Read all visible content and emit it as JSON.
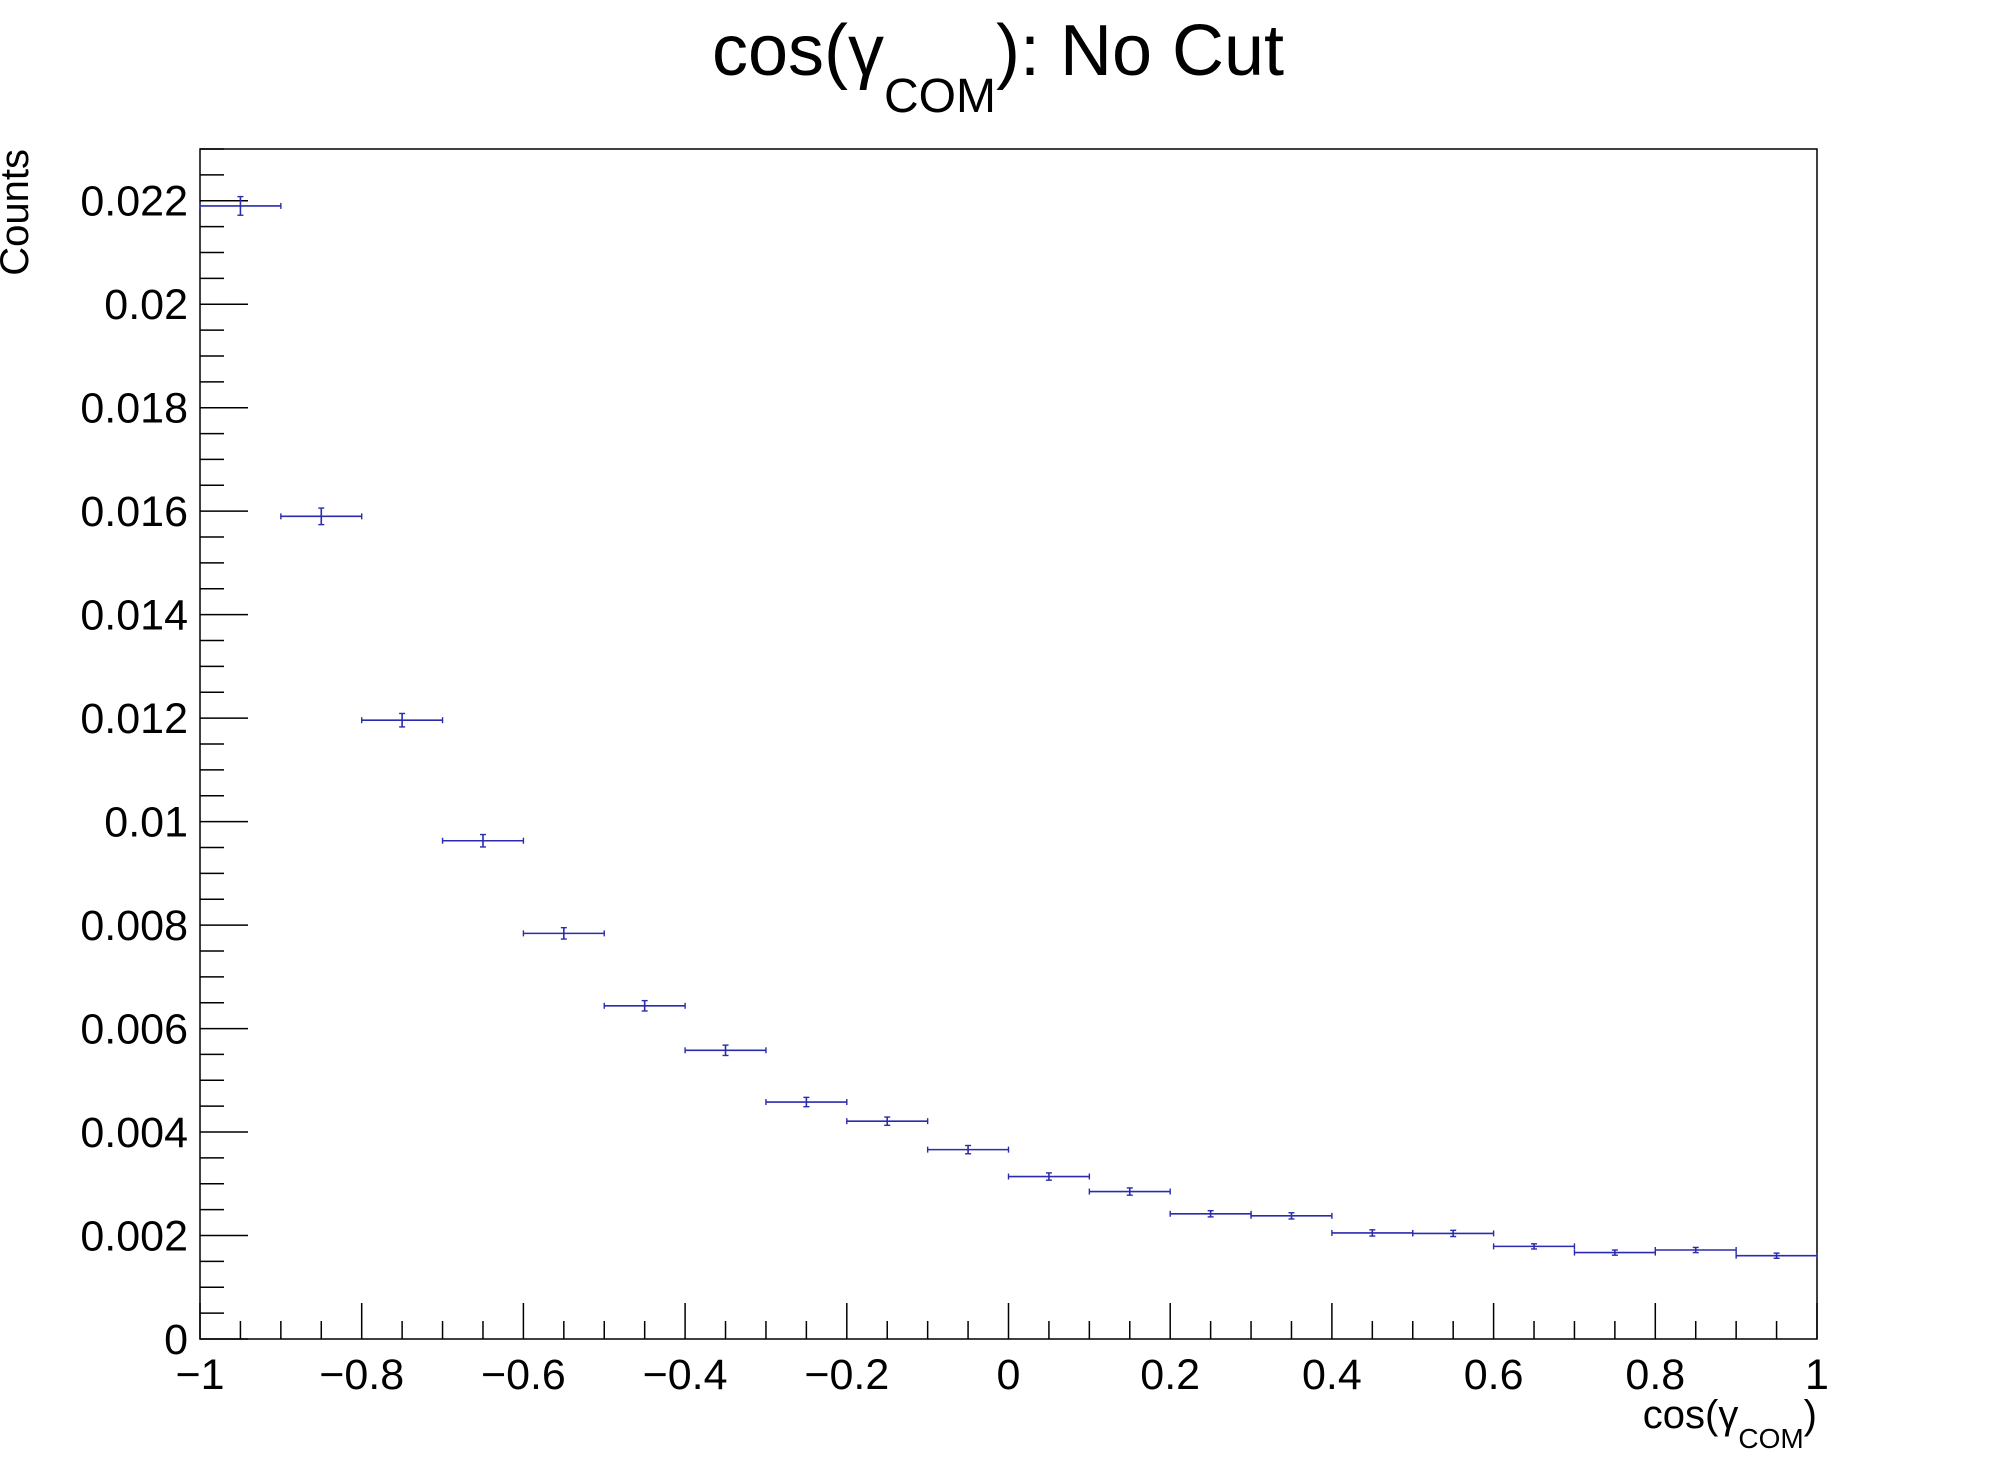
{
  "chart_data": {
    "type": "scatter",
    "title": "cos(γCOM): No Cut",
    "title_parts": {
      "main": "cos(γ",
      "sub": "COM",
      "tail": "): No Cut"
    },
    "xlabel": "cos(γCOM)",
    "xlabel_parts": {
      "main": "cos(γ",
      "sub": "COM",
      "tail": ")"
    },
    "ylabel": "Counts",
    "xlim": [
      -1,
      1
    ],
    "ylim": [
      0,
      0.023
    ],
    "x_ticks": [
      -1,
      -0.8,
      -0.6,
      -0.4,
      -0.2,
      0,
      0.2,
      0.4,
      0.6,
      0.8,
      1
    ],
    "x_tick_labels": [
      "−1",
      "−0.8",
      "−0.6",
      "−0.4",
      "−0.2",
      "0",
      "0.2",
      "0.4",
      "0.6",
      "0.8",
      "1"
    ],
    "y_ticks": [
      0,
      0.002,
      0.004,
      0.006,
      0.008,
      0.01,
      0.012,
      0.014,
      0.016,
      0.018,
      0.02,
      0.022
    ],
    "y_tick_labels": [
      "0",
      "0.002",
      "0.004",
      "0.006",
      "0.008",
      "0.01",
      "0.012",
      "0.014",
      "0.016",
      "0.018",
      "0.02",
      "0.022"
    ],
    "bin_width": 0.1,
    "grid": false,
    "legend": "none",
    "marker_color": "#2b2bb0",
    "series": [
      {
        "x": [
          -0.95,
          -0.85,
          -0.75,
          -0.65,
          -0.55,
          -0.45,
          -0.35,
          -0.25,
          -0.15,
          -0.05,
          0.05,
          0.15,
          0.25,
          0.35,
          0.45,
          0.55,
          0.65,
          0.75,
          0.85,
          0.95
        ],
        "y": [
          0.0219,
          0.0159,
          0.01196,
          0.00963,
          0.00784,
          0.00644,
          0.00558,
          0.00458,
          0.00421,
          0.00366,
          0.00314,
          0.00285,
          0.00242,
          0.00238,
          0.00205,
          0.00204,
          0.00179,
          0.00167,
          0.00172,
          0.00161
        ],
        "yerr": [
          0.00018,
          0.00016,
          0.00013,
          0.00012,
          0.00011,
          0.0001,
          0.0001,
          9e-05,
          8e-05,
          8e-05,
          7e-05,
          7e-05,
          6e-05,
          6e-05,
          6e-05,
          6e-05,
          5e-05,
          5e-05,
          5e-05,
          5e-05
        ]
      }
    ]
  }
}
